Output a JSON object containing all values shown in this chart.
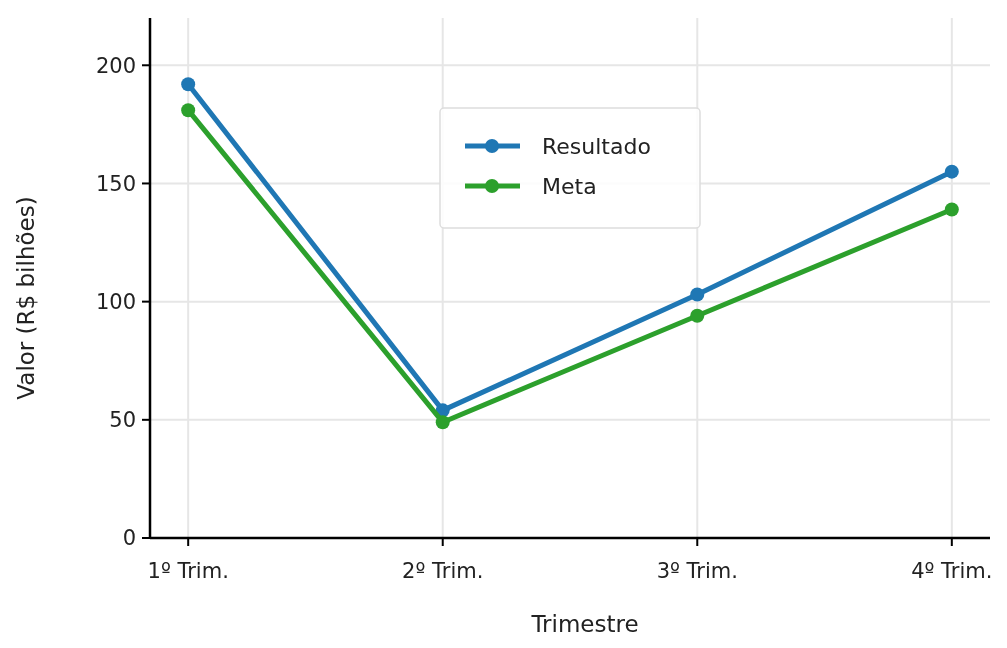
{
  "chart_data": {
    "type": "line",
    "xlabel": "Trimestre",
    "ylabel": "Valor (R$ bilhões)",
    "categories": [
      "1º Trim.",
      "2º Trim.",
      "3º Trim.",
      "4º Trim."
    ],
    "series": [
      {
        "name": "Resultado",
        "color": "#1f77b4",
        "values": [
          192,
          54,
          103,
          155
        ]
      },
      {
        "name": "Meta",
        "color": "#2ca02c",
        "values": [
          181,
          49,
          94,
          139
        ]
      }
    ],
    "ylim": [
      0,
      220
    ],
    "yticks": [
      0,
      50,
      100,
      150,
      200
    ],
    "grid": true,
    "legend": "top center",
    "marker": "circle",
    "line_style": "solid"
  }
}
